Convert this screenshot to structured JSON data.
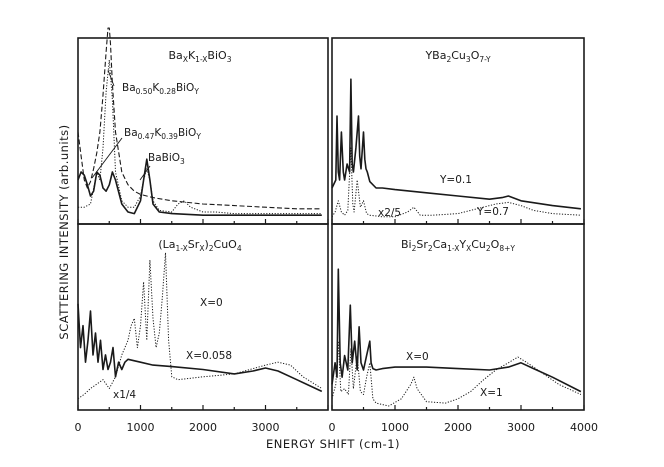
{
  "figure": {
    "ylabel": "SCATTERING INTENSITY (arb.units)",
    "xlabel": "ENERGY SHIFT (cm-1)"
  },
  "chart_data": [
    {
      "type": "line",
      "title_parts": [
        {
          "t": "Ba"
        },
        {
          "t": "X",
          "sub": true
        },
        {
          "t": "K"
        },
        {
          "t": "1-X",
          "sub": true
        },
        {
          "t": "BiO"
        },
        {
          "t": "3",
          "sub": true
        }
      ],
      "xlim": [
        0,
        4000
      ],
      "xticks": [],
      "annotations": [
        {
          "id": "ba050",
          "parts": [
            {
              "t": "Ba"
            },
            {
              "t": "0.50",
              "sub": true
            },
            {
              "t": "K"
            },
            {
              "t": "0.28",
              "sub": true
            },
            {
              "t": "BiO"
            },
            {
              "t": "Y",
              "sub": true
            }
          ]
        },
        {
          "id": "ba047",
          "parts": [
            {
              "t": "Ba"
            },
            {
              "t": "0.47",
              "sub": true
            },
            {
              "t": "K"
            },
            {
              "t": "0.39",
              "sub": true
            },
            {
              "t": "BiO"
            },
            {
              "t": "Y",
              "sub": true
            }
          ]
        },
        {
          "id": "babio3",
          "parts": [
            {
              "t": "BaBiO"
            },
            {
              "t": "3",
              "sub": true
            }
          ]
        }
      ],
      "series": [
        {
          "style": "dashed",
          "x": [
            0,
            50,
            100,
            150,
            200,
            250,
            300,
            350,
            400,
            450,
            480,
            500,
            520,
            550,
            600,
            700,
            800,
            900,
            1000,
            1200,
            1500,
            2000,
            2500,
            3000,
            3500,
            3900
          ],
          "y": [
            0.55,
            0.4,
            0.25,
            0.2,
            0.24,
            0.32,
            0.42,
            0.55,
            0.78,
            1.05,
            1.2,
            1.2,
            1.1,
            0.85,
            0.55,
            0.3,
            0.22,
            0.18,
            0.16,
            0.14,
            0.12,
            0.1,
            0.09,
            0.08,
            0.07,
            0.07
          ]
        },
        {
          "style": "dotted",
          "x": [
            0,
            100,
            200,
            300,
            350,
            400,
            450,
            500,
            550,
            600,
            700,
            800,
            900,
            1000,
            1050,
            1100,
            1150,
            1200,
            1300,
            1500,
            1600,
            1700,
            1800,
            2000,
            2200,
            2500,
            3000,
            3500,
            3900
          ],
          "y": [
            0.08,
            0.08,
            0.1,
            0.3,
            0.25,
            0.45,
            0.8,
            1.0,
            0.75,
            0.3,
            0.12,
            0.08,
            0.08,
            0.15,
            0.25,
            0.32,
            0.25,
            0.12,
            0.06,
            0.05,
            0.1,
            0.12,
            0.08,
            0.05,
            0.05,
            0.04,
            0.04,
            0.04,
            0.04
          ]
        },
        {
          "style": "solid",
          "x": [
            0,
            50,
            100,
            150,
            200,
            250,
            300,
            350,
            400,
            450,
            500,
            550,
            600,
            700,
            800,
            900,
            1000,
            1050,
            1100,
            1150,
            1200,
            1300,
            1500,
            2000,
            2500,
            3000,
            3500,
            3900
          ],
          "y": [
            0.25,
            0.3,
            0.28,
            0.22,
            0.15,
            0.18,
            0.3,
            0.28,
            0.2,
            0.18,
            0.22,
            0.3,
            0.25,
            0.1,
            0.05,
            0.04,
            0.12,
            0.25,
            0.38,
            0.25,
            0.1,
            0.05,
            0.04,
            0.03,
            0.03,
            0.03,
            0.03,
            0.03
          ]
        }
      ]
    },
    {
      "type": "line",
      "title_parts": [
        {
          "t": "YBa"
        },
        {
          "t": "2",
          "sub": true
        },
        {
          "t": "Cu"
        },
        {
          "t": "3",
          "sub": true
        },
        {
          "t": "O"
        },
        {
          "t": "7-Y",
          "sub": true
        }
      ],
      "xlim": [
        0,
        4000
      ],
      "xticks": [],
      "annotations": [
        {
          "id": "y01",
          "parts": [
            {
              "t": "Y=0.1"
            }
          ]
        },
        {
          "id": "y07",
          "parts": [
            {
              "t": "Y=0.7"
            }
          ]
        },
        {
          "id": "x25",
          "parts": [
            {
              "t": "x2/5"
            }
          ]
        }
      ],
      "series": [
        {
          "style": "solid",
          "x": [
            0,
            60,
            80,
            100,
            120,
            150,
            180,
            200,
            240,
            280,
            300,
            320,
            340,
            380,
            420,
            440,
            460,
            500,
            520,
            540,
            560,
            600,
            700,
            800,
            1000,
            1500,
            2000,
            2500,
            2700,
            2800,
            3000,
            3500,
            3950
          ],
          "y": [
            0.2,
            0.25,
            0.65,
            0.3,
            0.25,
            0.55,
            0.3,
            0.25,
            0.35,
            0.3,
            0.88,
            0.35,
            0.3,
            0.45,
            0.65,
            0.4,
            0.32,
            0.55,
            0.38,
            0.32,
            0.3,
            0.24,
            0.2,
            0.2,
            0.19,
            0.17,
            0.15,
            0.13,
            0.14,
            0.15,
            0.12,
            0.09,
            0.07
          ]
        },
        {
          "style": "dotted",
          "x": [
            0,
            50,
            100,
            150,
            200,
            250,
            300,
            330,
            350,
            400,
            450,
            500,
            550,
            600,
            800,
            1000,
            1200,
            1300,
            1400,
            1600,
            2000,
            2400,
            2600,
            2800,
            3000,
            3200,
            3500,
            3950
          ],
          "y": [
            0.02,
            0.05,
            0.12,
            0.05,
            0.03,
            0.06,
            0.45,
            0.1,
            0.05,
            0.25,
            0.08,
            0.12,
            0.04,
            0.03,
            0.02,
            0.02,
            0.05,
            0.08,
            0.03,
            0.03,
            0.04,
            0.08,
            0.1,
            0.11,
            0.09,
            0.06,
            0.04,
            0.03
          ]
        }
      ]
    },
    {
      "type": "line",
      "title_parts": [
        {
          "t": "(La"
        },
        {
          "t": "1-X",
          "sub": true
        },
        {
          "t": "Sr"
        },
        {
          "t": "X",
          "sub": true
        },
        {
          "t": ")"
        },
        {
          "t": "2",
          "sub": true
        },
        {
          "t": "CuO"
        },
        {
          "t": "4",
          "sub": true
        }
      ],
      "xlim": [
        0,
        4000
      ],
      "xticks": [
        0,
        1000,
        2000,
        3000
      ],
      "annotations": [
        {
          "id": "x0",
          "parts": [
            {
              "t": "X=0"
            }
          ]
        },
        {
          "id": "x0058",
          "parts": [
            {
              "t": "X=0.058"
            }
          ]
        },
        {
          "id": "x14",
          "parts": [
            {
              "t": "x1/4"
            }
          ]
        }
      ],
      "series": [
        {
          "style": "dotted",
          "x": [
            0,
            100,
            200,
            300,
            400,
            500,
            600,
            700,
            800,
            850,
            900,
            950,
            1000,
            1050,
            1100,
            1150,
            1200,
            1250,
            1300,
            1350,
            1400,
            1450,
            1500,
            1600,
            2000,
            2500,
            3000,
            3200,
            3400,
            3600,
            3900
          ],
          "y": [
            0.05,
            0.08,
            0.12,
            0.15,
            0.18,
            0.12,
            0.2,
            0.35,
            0.45,
            0.55,
            0.6,
            0.4,
            0.55,
            0.85,
            0.45,
            1.0,
            0.6,
            0.4,
            0.5,
            0.75,
            1.05,
            0.45,
            0.2,
            0.18,
            0.2,
            0.22,
            0.28,
            0.3,
            0.28,
            0.2,
            0.12
          ]
        },
        {
          "style": "solid",
          "x": [
            0,
            40,
            80,
            120,
            160,
            200,
            240,
            280,
            320,
            360,
            400,
            440,
            480,
            520,
            560,
            600,
            650,
            700,
            750,
            800,
            1000,
            1200,
            1500,
            2000,
            2500,
            2800,
            3000,
            3200,
            3500,
            3900
          ],
          "y": [
            0.7,
            0.4,
            0.55,
            0.3,
            0.45,
            0.65,
            0.35,
            0.5,
            0.3,
            0.45,
            0.25,
            0.35,
            0.25,
            0.3,
            0.4,
            0.2,
            0.3,
            0.25,
            0.3,
            0.32,
            0.3,
            0.28,
            0.27,
            0.25,
            0.22,
            0.24,
            0.26,
            0.24,
            0.18,
            0.1
          ]
        }
      ]
    },
    {
      "type": "line",
      "title_parts": [
        {
          "t": "Bi"
        },
        {
          "t": "2",
          "sub": true
        },
        {
          "t": "Sr"
        },
        {
          "t": "2",
          "sub": true
        },
        {
          "t": "Ca"
        },
        {
          "t": "1-X",
          "sub": true
        },
        {
          "t": "Y"
        },
        {
          "t": "X",
          "sub": true
        },
        {
          "t": "Cu"
        },
        {
          "t": "2",
          "sub": true
        },
        {
          "t": "O"
        },
        {
          "t": "8+Y",
          "sub": true
        }
      ],
      "xlim": [
        0,
        4000
      ],
      "xticks": [
        0,
        1000,
        2000,
        3000,
        4000
      ],
      "annotations": [
        {
          "id": "x0b",
          "parts": [
            {
              "t": "X=0"
            }
          ]
        },
        {
          "id": "x1",
          "parts": [
            {
              "t": "X=1"
            }
          ]
        }
      ],
      "series": [
        {
          "style": "solid",
          "x": [
            0,
            50,
            80,
            100,
            130,
            160,
            200,
            250,
            290,
            320,
            360,
            400,
            430,
            460,
            500,
            550,
            600,
            620,
            650,
            700,
            800,
            1000,
            1500,
            2000,
            2500,
            2800,
            3000,
            3200,
            3500,
            3950
          ],
          "y": [
            0.15,
            0.3,
            0.2,
            0.95,
            0.3,
            0.2,
            0.35,
            0.25,
            0.7,
            0.3,
            0.45,
            0.25,
            0.55,
            0.3,
            0.25,
            0.35,
            0.45,
            0.3,
            0.26,
            0.25,
            0.26,
            0.27,
            0.27,
            0.26,
            0.25,
            0.27,
            0.3,
            0.26,
            0.2,
            0.1
          ]
        },
        {
          "style": "dotted",
          "x": [
            0,
            60,
            100,
            140,
            200,
            260,
            300,
            340,
            400,
            450,
            500,
            550,
            600,
            650,
            700,
            900,
            1100,
            1250,
            1300,
            1350,
            1500,
            1800,
            2000,
            2200,
            2400,
            2600,
            2800,
            2950,
            3100,
            3300,
            3600,
            3950
          ],
          "y": [
            0.05,
            0.15,
            0.45,
            0.1,
            0.12,
            0.08,
            0.4,
            0.12,
            0.35,
            0.1,
            0.08,
            0.2,
            0.3,
            0.05,
            0.02,
            0.0,
            0.05,
            0.15,
            0.2,
            0.12,
            0.03,
            0.02,
            0.05,
            0.1,
            0.18,
            0.25,
            0.3,
            0.34,
            0.3,
            0.24,
            0.15,
            0.08
          ]
        }
      ]
    }
  ]
}
